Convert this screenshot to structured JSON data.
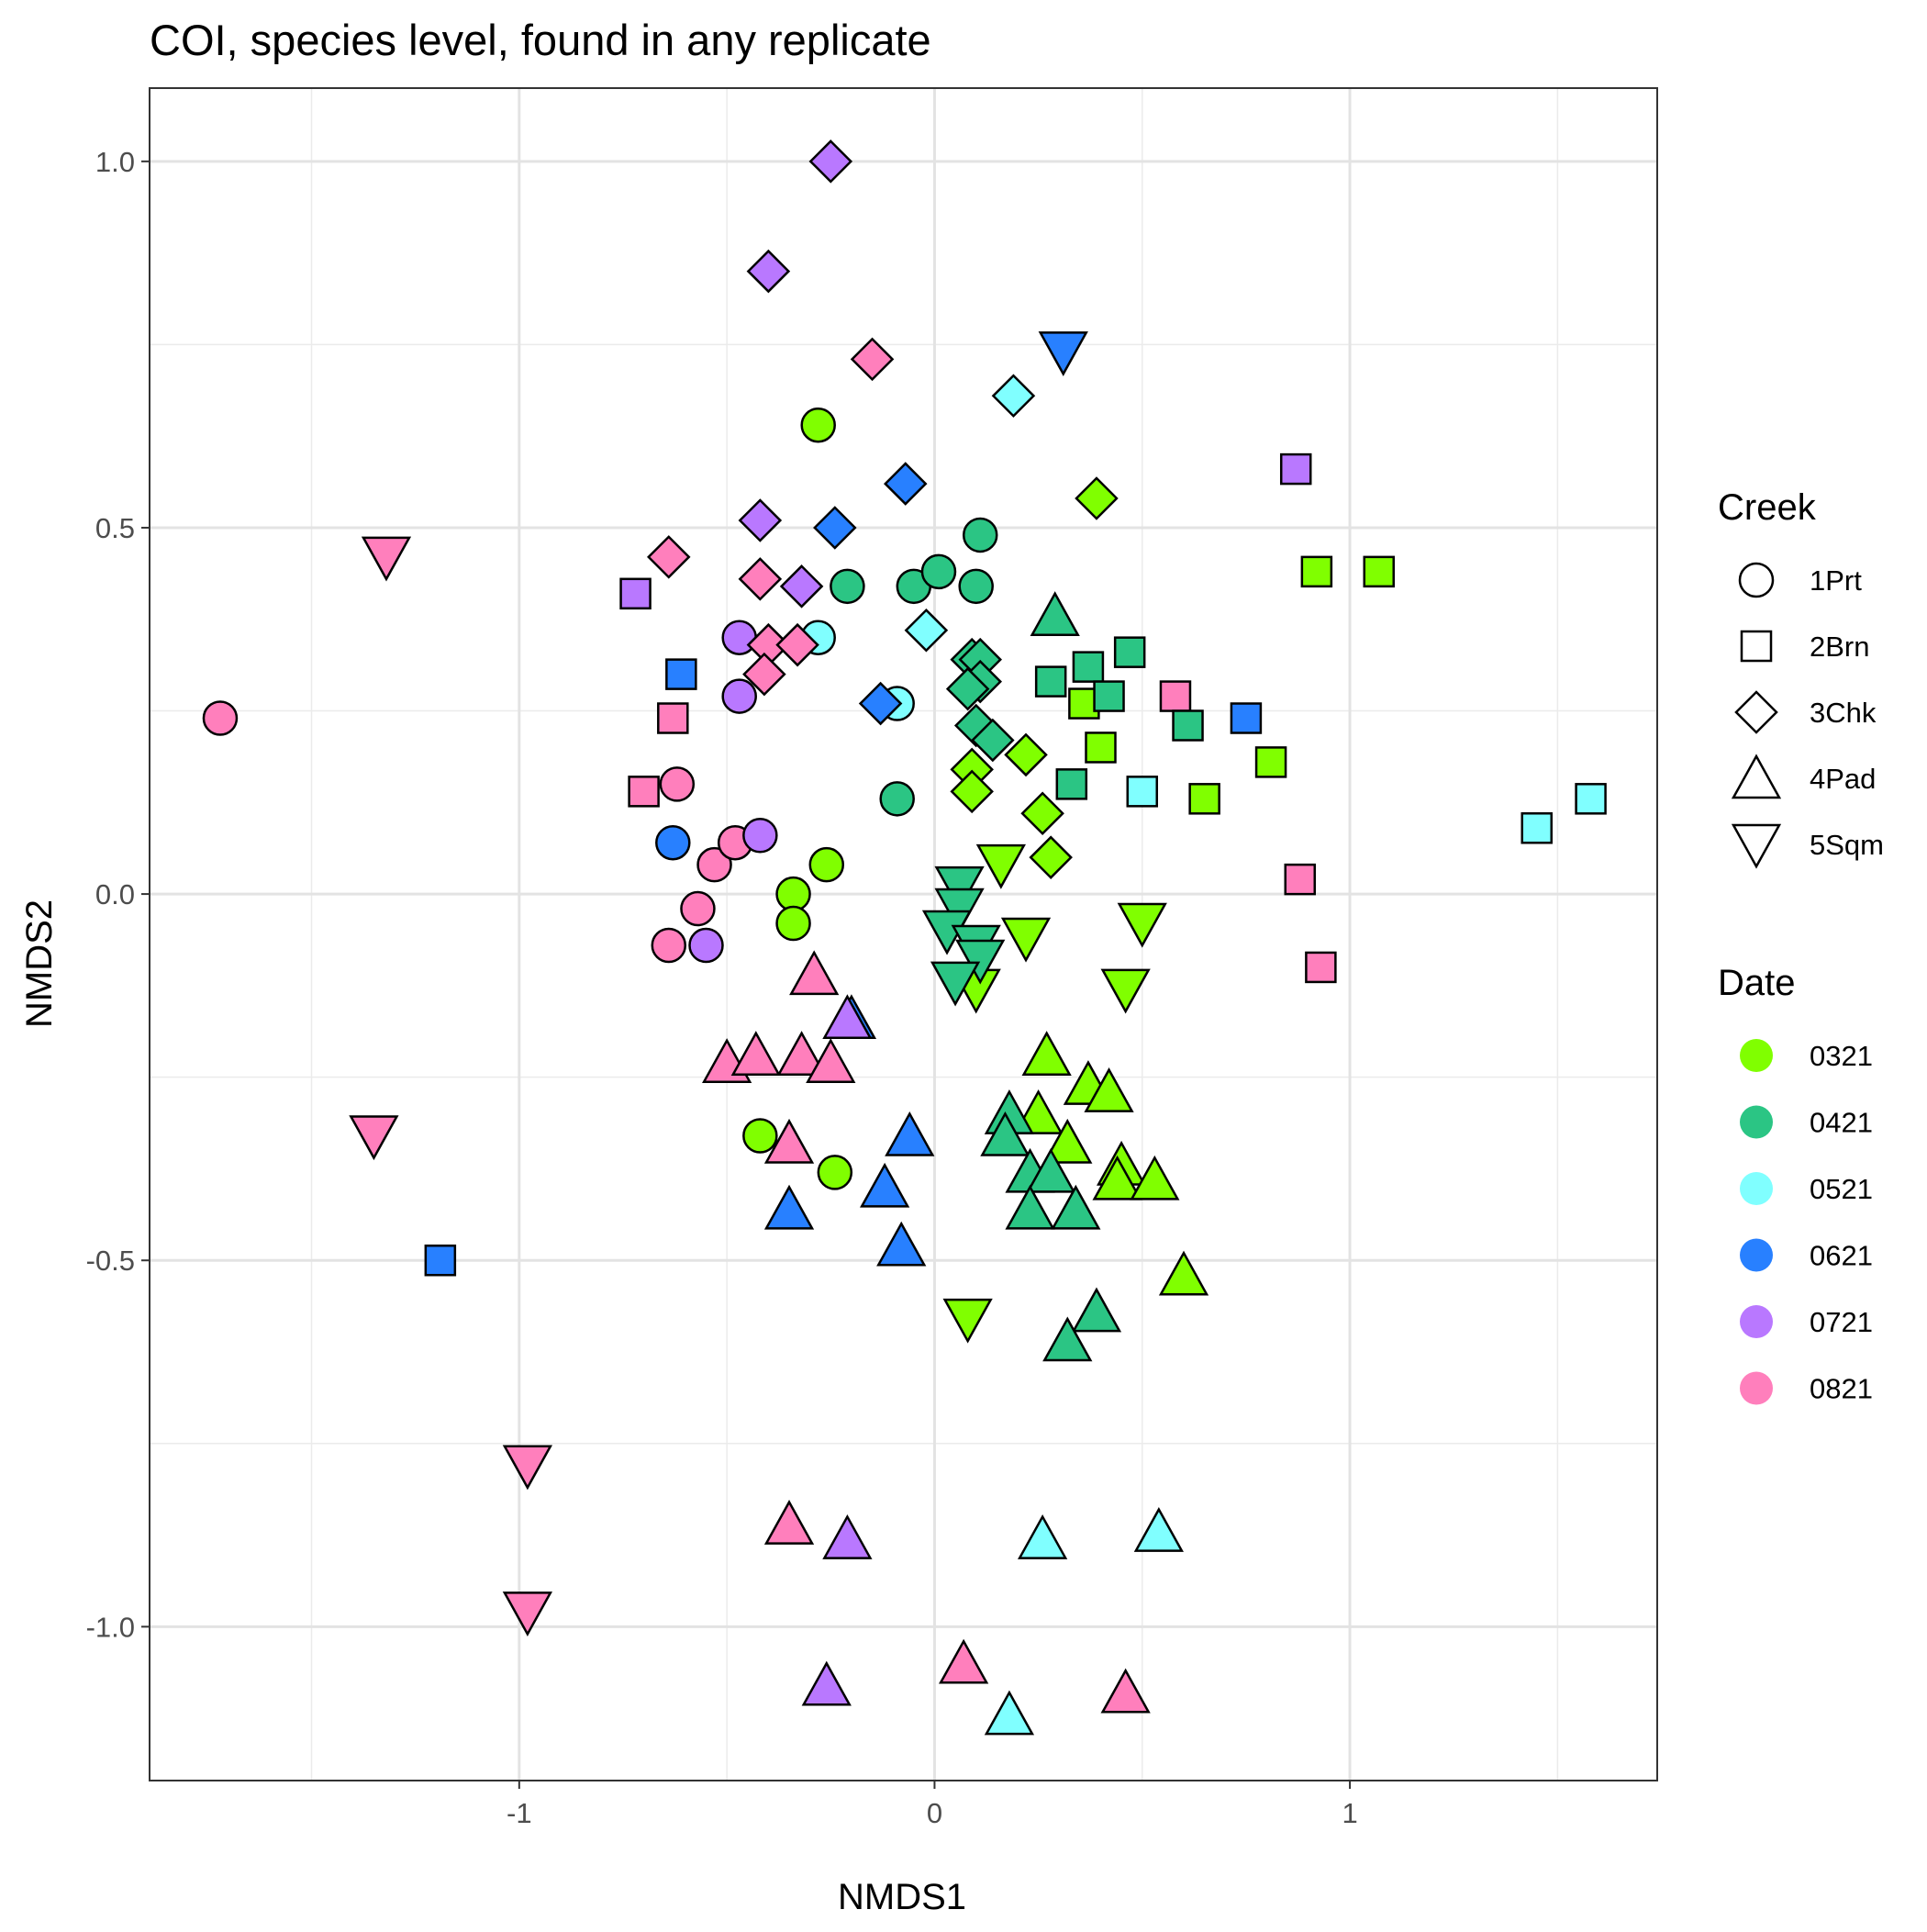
{
  "chart_data": {
    "type": "scatter",
    "title": "COI, species level, found in any replicate",
    "xlabel": "NMDS1",
    "ylabel": "NMDS2",
    "xlim": [
      -1.89,
      1.74
    ],
    "ylim": [
      -1.21,
      1.1
    ],
    "x_ticks": [
      -1,
      0,
      1
    ],
    "x_tick_labels": [
      "-1",
      "0",
      "1"
    ],
    "y_ticks": [
      -1.0,
      -0.5,
      0.0,
      0.5,
      1.0
    ],
    "y_tick_labels": [
      "-1.0",
      "-0.5",
      "0.0",
      "0.5",
      "1.0"
    ],
    "grid": true,
    "legend_position": "right",
    "shape_legend": {
      "title": "Creek",
      "entries": [
        {
          "label": "1Prt",
          "shape": "circle"
        },
        {
          "label": "2Brn",
          "shape": "square"
        },
        {
          "label": "3Chk",
          "shape": "diamond"
        },
        {
          "label": "4Pad",
          "shape": "triangle-up"
        },
        {
          "label": "5Sqm",
          "shape": "triangle-down"
        }
      ]
    },
    "color_legend": {
      "title": "Date",
      "entries": [
        {
          "label": "0321",
          "color": "#80FF00"
        },
        {
          "label": "0421",
          "color": "#2BC584"
        },
        {
          "label": "0521",
          "color": "#80FFFF"
        },
        {
          "label": "0621",
          "color": "#2880FF"
        },
        {
          "label": "0721",
          "color": "#B978FF"
        },
        {
          "label": "0821",
          "color": "#FF7FBC"
        }
      ]
    },
    "points": [
      {
        "x": -1.72,
        "y": 0.24,
        "creek": "1Prt",
        "date": "0821"
      },
      {
        "x": -0.62,
        "y": 0.15,
        "creek": "1Prt",
        "date": "0821"
      },
      {
        "x": -0.53,
        "y": 0.04,
        "creek": "1Prt",
        "date": "0821"
      },
      {
        "x": -0.48,
        "y": 0.07,
        "creek": "1Prt",
        "date": "0821"
      },
      {
        "x": -0.57,
        "y": -0.02,
        "creek": "1Prt",
        "date": "0821"
      },
      {
        "x": -0.64,
        "y": -0.07,
        "creek": "1Prt",
        "date": "0821"
      },
      {
        "x": -0.63,
        "y": 0.07,
        "creek": "1Prt",
        "date": "0621"
      },
      {
        "x": -0.47,
        "y": 0.35,
        "creek": "1Prt",
        "date": "0721"
      },
      {
        "x": -0.47,
        "y": 0.27,
        "creek": "1Prt",
        "date": "0721"
      },
      {
        "x": -0.42,
        "y": 0.08,
        "creek": "1Prt",
        "date": "0721"
      },
      {
        "x": -0.55,
        "y": -0.07,
        "creek": "1Prt",
        "date": "0721"
      },
      {
        "x": -0.28,
        "y": 0.35,
        "creek": "1Prt",
        "date": "0521"
      },
      {
        "x": -0.09,
        "y": 0.26,
        "creek": "1Prt",
        "date": "0521"
      },
      {
        "x": -0.28,
        "y": 0.64,
        "creek": "1Prt",
        "date": "0321"
      },
      {
        "x": -0.26,
        "y": 0.04,
        "creek": "1Prt",
        "date": "0321"
      },
      {
        "x": -0.34,
        "y": 0.0,
        "creek": "1Prt",
        "date": "0321"
      },
      {
        "x": -0.34,
        "y": -0.04,
        "creek": "1Prt",
        "date": "0321"
      },
      {
        "x": -0.42,
        "y": -0.33,
        "creek": "1Prt",
        "date": "0321"
      },
      {
        "x": -0.24,
        "y": -0.38,
        "creek": "1Prt",
        "date": "0321"
      },
      {
        "x": -0.21,
        "y": 0.42,
        "creek": "1Prt",
        "date": "0421"
      },
      {
        "x": -0.05,
        "y": 0.42,
        "creek": "1Prt",
        "date": "0421"
      },
      {
        "x": 0.01,
        "y": 0.44,
        "creek": "1Prt",
        "date": "0421"
      },
      {
        "x": 0.11,
        "y": 0.49,
        "creek": "1Prt",
        "date": "0421"
      },
      {
        "x": 0.1,
        "y": 0.42,
        "creek": "1Prt",
        "date": "0421"
      },
      {
        "x": -0.09,
        "y": 0.13,
        "creek": "1Prt",
        "date": "0421"
      },
      {
        "x": -0.72,
        "y": 0.41,
        "creek": "2Brn",
        "date": "0721"
      },
      {
        "x": 0.87,
        "y": 0.58,
        "creek": "2Brn",
        "date": "0721"
      },
      {
        "x": -0.61,
        "y": 0.3,
        "creek": "2Brn",
        "date": "0621"
      },
      {
        "x": -1.19,
        "y": -0.5,
        "creek": "2Brn",
        "date": "0621"
      },
      {
        "x": 0.75,
        "y": 0.24,
        "creek": "2Brn",
        "date": "0621"
      },
      {
        "x": -0.63,
        "y": 0.24,
        "creek": "2Brn",
        "date": "0821"
      },
      {
        "x": -0.7,
        "y": 0.14,
        "creek": "2Brn",
        "date": "0821"
      },
      {
        "x": 0.58,
        "y": 0.27,
        "creek": "2Brn",
        "date": "0821"
      },
      {
        "x": 0.88,
        "y": 0.02,
        "creek": "2Brn",
        "date": "0821"
      },
      {
        "x": 0.93,
        "y": -0.1,
        "creek": "2Brn",
        "date": "0821"
      },
      {
        "x": 0.5,
        "y": 0.14,
        "creek": "2Brn",
        "date": "0521"
      },
      {
        "x": 1.45,
        "y": 0.09,
        "creek": "2Brn",
        "date": "0521"
      },
      {
        "x": 1.58,
        "y": 0.13,
        "creek": "2Brn",
        "date": "0521"
      },
      {
        "x": 0.92,
        "y": 0.44,
        "creek": "2Brn",
        "date": "0321"
      },
      {
        "x": 1.07,
        "y": 0.44,
        "creek": "2Brn",
        "date": "0321"
      },
      {
        "x": 0.36,
        "y": 0.26,
        "creek": "2Brn",
        "date": "0321"
      },
      {
        "x": 0.4,
        "y": 0.2,
        "creek": "2Brn",
        "date": "0321"
      },
      {
        "x": 0.65,
        "y": 0.13,
        "creek": "2Brn",
        "date": "0321"
      },
      {
        "x": 0.81,
        "y": 0.18,
        "creek": "2Brn",
        "date": "0321"
      },
      {
        "x": 0.28,
        "y": 0.29,
        "creek": "2Brn",
        "date": "0421"
      },
      {
        "x": 0.37,
        "y": 0.31,
        "creek": "2Brn",
        "date": "0421"
      },
      {
        "x": 0.42,
        "y": 0.27,
        "creek": "2Brn",
        "date": "0421"
      },
      {
        "x": 0.47,
        "y": 0.33,
        "creek": "2Brn",
        "date": "0421"
      },
      {
        "x": 0.61,
        "y": 0.23,
        "creek": "2Brn",
        "date": "0421"
      },
      {
        "x": 0.33,
        "y": 0.15,
        "creek": "2Brn",
        "date": "0421"
      },
      {
        "x": -0.25,
        "y": 1.0,
        "creek": "3Chk",
        "date": "0721"
      },
      {
        "x": -0.4,
        "y": 0.85,
        "creek": "3Chk",
        "date": "0721"
      },
      {
        "x": -0.42,
        "y": 0.51,
        "creek": "3Chk",
        "date": "0721"
      },
      {
        "x": -0.32,
        "y": 0.42,
        "creek": "3Chk",
        "date": "0721"
      },
      {
        "x": -0.15,
        "y": 0.73,
        "creek": "3Chk",
        "date": "0821"
      },
      {
        "x": -0.64,
        "y": 0.46,
        "creek": "3Chk",
        "date": "0821"
      },
      {
        "x": -0.42,
        "y": 0.43,
        "creek": "3Chk",
        "date": "0821"
      },
      {
        "x": -0.4,
        "y": 0.34,
        "creek": "3Chk",
        "date": "0821"
      },
      {
        "x": -0.33,
        "y": 0.34,
        "creek": "3Chk",
        "date": "0821"
      },
      {
        "x": -0.41,
        "y": 0.3,
        "creek": "3Chk",
        "date": "0821"
      },
      {
        "x": 0.19,
        "y": 0.68,
        "creek": "3Chk",
        "date": "0521"
      },
      {
        "x": -0.02,
        "y": 0.36,
        "creek": "3Chk",
        "date": "0521"
      },
      {
        "x": -0.07,
        "y": 0.56,
        "creek": "3Chk",
        "date": "0621"
      },
      {
        "x": -0.24,
        "y": 0.5,
        "creek": "3Chk",
        "date": "0621"
      },
      {
        "x": -0.13,
        "y": 0.26,
        "creek": "3Chk",
        "date": "0621"
      },
      {
        "x": 0.39,
        "y": 0.54,
        "creek": "3Chk",
        "date": "0321"
      },
      {
        "x": 0.09,
        "y": 0.17,
        "creek": "3Chk",
        "date": "0321"
      },
      {
        "x": 0.09,
        "y": 0.14,
        "creek": "3Chk",
        "date": "0321"
      },
      {
        "x": 0.22,
        "y": 0.19,
        "creek": "3Chk",
        "date": "0321"
      },
      {
        "x": 0.26,
        "y": 0.11,
        "creek": "3Chk",
        "date": "0321"
      },
      {
        "x": 0.28,
        "y": 0.05,
        "creek": "3Chk",
        "date": "0321"
      },
      {
        "x": 0.09,
        "y": 0.32,
        "creek": "3Chk",
        "date": "0421"
      },
      {
        "x": 0.11,
        "y": 0.32,
        "creek": "3Chk",
        "date": "0421"
      },
      {
        "x": 0.11,
        "y": 0.29,
        "creek": "3Chk",
        "date": "0421"
      },
      {
        "x": 0.08,
        "y": 0.28,
        "creek": "3Chk",
        "date": "0421"
      },
      {
        "x": 0.1,
        "y": 0.23,
        "creek": "3Chk",
        "date": "0421"
      },
      {
        "x": 0.14,
        "y": 0.21,
        "creek": "3Chk",
        "date": "0421"
      },
      {
        "x": 0.29,
        "y": 0.38,
        "creek": "4Pad",
        "date": "0421"
      },
      {
        "x": -0.29,
        "y": -0.11,
        "creek": "4Pad",
        "date": "0821"
      },
      {
        "x": -0.5,
        "y": -0.23,
        "creek": "4Pad",
        "date": "0821"
      },
      {
        "x": -0.43,
        "y": -0.22,
        "creek": "4Pad",
        "date": "0821"
      },
      {
        "x": -0.32,
        "y": -0.22,
        "creek": "4Pad",
        "date": "0821"
      },
      {
        "x": -0.25,
        "y": -0.23,
        "creek": "4Pad",
        "date": "0821"
      },
      {
        "x": -0.35,
        "y": -0.34,
        "creek": "4Pad",
        "date": "0821"
      },
      {
        "x": -0.35,
        "y": -0.86,
        "creek": "4Pad",
        "date": "0821"
      },
      {
        "x": 0.07,
        "y": -1.05,
        "creek": "4Pad",
        "date": "0821"
      },
      {
        "x": 0.46,
        "y": -1.09,
        "creek": "4Pad",
        "date": "0821"
      },
      {
        "x": -0.2,
        "y": -0.17,
        "creek": "4Pad",
        "date": "0621"
      },
      {
        "x": -0.06,
        "y": -0.33,
        "creek": "4Pad",
        "date": "0621"
      },
      {
        "x": -0.35,
        "y": -0.43,
        "creek": "4Pad",
        "date": "0621"
      },
      {
        "x": -0.12,
        "y": -0.4,
        "creek": "4Pad",
        "date": "0621"
      },
      {
        "x": -0.08,
        "y": -0.48,
        "creek": "4Pad",
        "date": "0621"
      },
      {
        "x": -0.21,
        "y": -0.17,
        "creek": "4Pad",
        "date": "0721"
      },
      {
        "x": -0.21,
        "y": -0.88,
        "creek": "4Pad",
        "date": "0721"
      },
      {
        "x": -0.26,
        "y": -1.08,
        "creek": "4Pad",
        "date": "0721"
      },
      {
        "x": 0.26,
        "y": -0.88,
        "creek": "4Pad",
        "date": "0521"
      },
      {
        "x": 0.54,
        "y": -0.87,
        "creek": "4Pad",
        "date": "0521"
      },
      {
        "x": 0.18,
        "y": -1.12,
        "creek": "4Pad",
        "date": "0521"
      },
      {
        "x": 0.27,
        "y": -0.22,
        "creek": "4Pad",
        "date": "0321"
      },
      {
        "x": 0.37,
        "y": -0.26,
        "creek": "4Pad",
        "date": "0321"
      },
      {
        "x": 0.42,
        "y": -0.27,
        "creek": "4Pad",
        "date": "0321"
      },
      {
        "x": 0.25,
        "y": -0.3,
        "creek": "4Pad",
        "date": "0321"
      },
      {
        "x": 0.32,
        "y": -0.34,
        "creek": "4Pad",
        "date": "0321"
      },
      {
        "x": 0.45,
        "y": -0.37,
        "creek": "4Pad",
        "date": "0321"
      },
      {
        "x": 0.44,
        "y": -0.39,
        "creek": "4Pad",
        "date": "0321"
      },
      {
        "x": 0.53,
        "y": -0.39,
        "creek": "4Pad",
        "date": "0321"
      },
      {
        "x": 0.6,
        "y": -0.52,
        "creek": "4Pad",
        "date": "0321"
      },
      {
        "x": 0.18,
        "y": -0.3,
        "creek": "4Pad",
        "date": "0421"
      },
      {
        "x": 0.17,
        "y": -0.33,
        "creek": "4Pad",
        "date": "0421"
      },
      {
        "x": 0.23,
        "y": -0.38,
        "creek": "4Pad",
        "date": "0421"
      },
      {
        "x": 0.28,
        "y": -0.38,
        "creek": "4Pad",
        "date": "0421"
      },
      {
        "x": 0.23,
        "y": -0.43,
        "creek": "4Pad",
        "date": "0421"
      },
      {
        "x": 0.34,
        "y": -0.43,
        "creek": "4Pad",
        "date": "0421"
      },
      {
        "x": 0.39,
        "y": -0.57,
        "creek": "4Pad",
        "date": "0421"
      },
      {
        "x": 0.32,
        "y": -0.61,
        "creek": "4Pad",
        "date": "0421"
      },
      {
        "x": -1.32,
        "y": 0.46,
        "creek": "5Sqm",
        "date": "0821"
      },
      {
        "x": -1.35,
        "y": -0.33,
        "creek": "5Sqm",
        "date": "0821"
      },
      {
        "x": -0.98,
        "y": -0.78,
        "creek": "5Sqm",
        "date": "0821"
      },
      {
        "x": -0.98,
        "y": -0.98,
        "creek": "5Sqm",
        "date": "0821"
      },
      {
        "x": 0.31,
        "y": 0.74,
        "creek": "5Sqm",
        "date": "0621"
      },
      {
        "x": 0.16,
        "y": 0.04,
        "creek": "5Sqm",
        "date": "0321"
      },
      {
        "x": 0.22,
        "y": -0.06,
        "creek": "5Sqm",
        "date": "0321"
      },
      {
        "x": 0.5,
        "y": -0.04,
        "creek": "5Sqm",
        "date": "0321"
      },
      {
        "x": 0.46,
        "y": -0.13,
        "creek": "5Sqm",
        "date": "0321"
      },
      {
        "x": 0.1,
        "y": -0.13,
        "creek": "5Sqm",
        "date": "0321"
      },
      {
        "x": 0.08,
        "y": -0.58,
        "creek": "5Sqm",
        "date": "0321"
      },
      {
        "x": 0.06,
        "y": 0.01,
        "creek": "5Sqm",
        "date": "0421"
      },
      {
        "x": 0.06,
        "y": -0.02,
        "creek": "5Sqm",
        "date": "0421"
      },
      {
        "x": 0.03,
        "y": -0.05,
        "creek": "5Sqm",
        "date": "0421"
      },
      {
        "x": 0.1,
        "y": -0.07,
        "creek": "5Sqm",
        "date": "0421"
      },
      {
        "x": 0.11,
        "y": -0.09,
        "creek": "5Sqm",
        "date": "0421"
      },
      {
        "x": 0.05,
        "y": -0.12,
        "creek": "5Sqm",
        "date": "0421"
      }
    ]
  }
}
